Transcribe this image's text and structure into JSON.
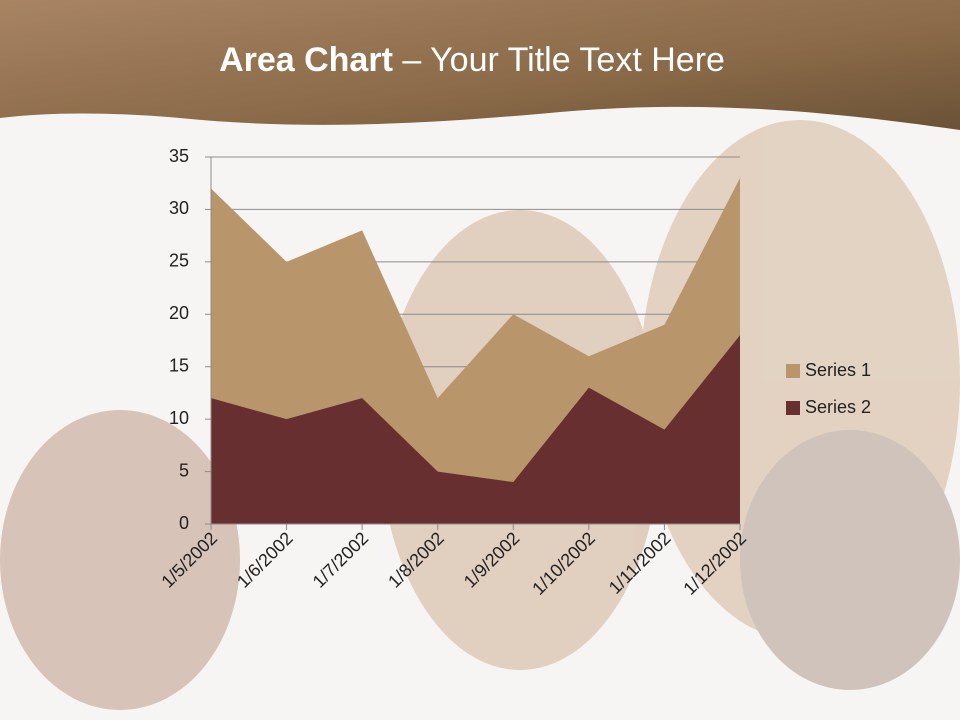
{
  "slide": {
    "title_bold": "Area Chart",
    "title_rest": "– Your Title Text Here"
  },
  "chart_data": {
    "type": "area",
    "categories": [
      "1/5/2002",
      "1/6/2002",
      "1/7/2002",
      "1/8/2002",
      "1/9/2002",
      "1/10/2002",
      "1/11/2002",
      "1/12/2002"
    ],
    "series": [
      {
        "name": "Series 1",
        "color": "#b8956a",
        "values": [
          32,
          25,
          28,
          12,
          20,
          16,
          19,
          33
        ]
      },
      {
        "name": "Series 2",
        "color": "#672f2f",
        "values": [
          12,
          10,
          12,
          5,
          4,
          13,
          9,
          18
        ]
      }
    ],
    "ylim": [
      0,
      35
    ],
    "yticks": [
      0,
      5,
      10,
      15,
      20,
      25,
      30,
      35
    ],
    "grid": true,
    "legend": "right"
  }
}
